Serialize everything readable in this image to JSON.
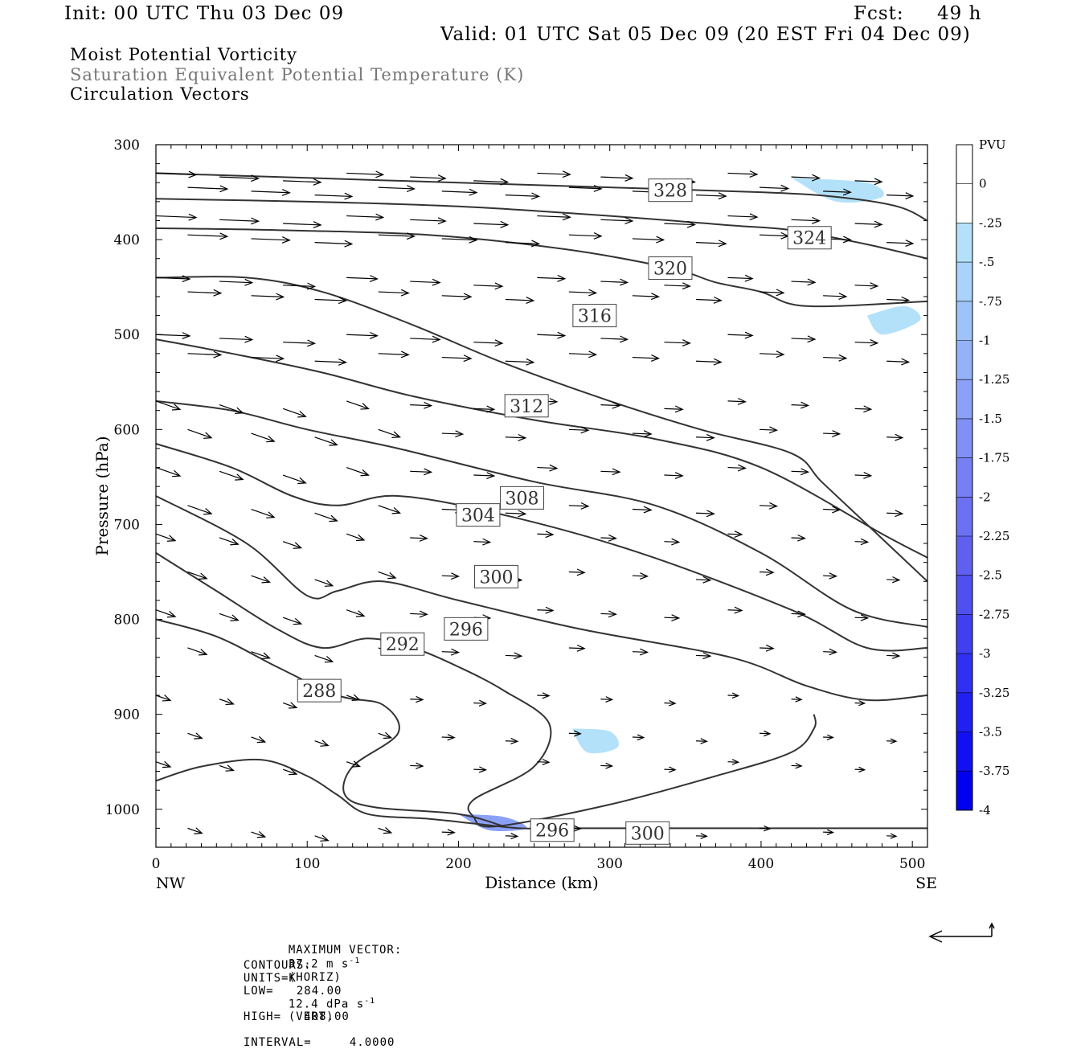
{
  "header": {
    "init": "Init: 00 UTC Thu 03 Dec 09",
    "fcst_label": "Fcst:",
    "fcst_value": "49 h",
    "valid": "Valid: 01 UTC Sat 05 Dec 09 (20 EST Fri 04 Dec 09)"
  },
  "fields": [
    {
      "label": "Moist Potential Vorticity",
      "color": "#000000"
    },
    {
      "label": "Saturation Equivalent Potential Temperature (K)",
      "color": "#777777"
    },
    {
      "label": "Circulation Vectors",
      "color": "#000000"
    }
  ],
  "footer": {
    "max_vector_label": "MAXIMUM VECTOR:",
    "horiz_value": "37.2 m s",
    "horiz_exp": "-1",
    "horiz_tag": "(HORIZ)",
    "vert_value": "12.4 dPa s",
    "vert_exp": "-1",
    "vert_tag": "(VERT)",
    "contours_label": "CONTOURS:",
    "units": "UNITS=K",
    "low": "LOW=   284.00",
    "high": "HIGH=   408.00",
    "interval": "INTERVAL=     4.0000"
  },
  "chart_data": {
    "type": "contour",
    "xlabel": "Distance (km)",
    "ylabel": "Pressure (hPa)",
    "xlim": [
      0,
      510
    ],
    "ylim": [
      1040,
      300
    ],
    "x_ticks": [
      0,
      100,
      200,
      300,
      400,
      500
    ],
    "y_ticks": [
      300,
      400,
      500,
      600,
      700,
      800,
      900,
      1000
    ],
    "x_end_labels": {
      "left": "NW",
      "right": "SE"
    },
    "colorbar": {
      "title": "PVU",
      "levels": [
        "0",
        "-.25",
        "-.5",
        "-.75",
        "-1",
        "-1.25",
        "-1.5",
        "-1.75",
        "-2",
        "-2.25",
        "-2.5",
        "-2.75",
        "-3",
        "-3.25",
        "-3.5",
        "-3.75",
        "-4"
      ],
      "colors": [
        "#ffffff",
        "#ffffff",
        "#b4e1fa",
        "#a9d3fa",
        "#9ec3f9",
        "#94b2f8",
        "#8aa1f7",
        "#8090f6",
        "#7680f4",
        "#6c70f2",
        "#6060f0",
        "#5050f0",
        "#4040f0",
        "#3030f0",
        "#2020f0",
        "#1010f0",
        "#0000f0"
      ]
    },
    "theta_es_contours": [
      {
        "label": "288",
        "points": [
          [
            0,
            970
          ],
          [
            30,
            955
          ],
          [
            70,
            948
          ],
          [
            100,
            965
          ],
          [
            120,
            985
          ],
          [
            140,
            1005
          ],
          [
            180,
            1010
          ],
          [
            210,
            1015
          ],
          [
            240,
            1020
          ],
          [
            260,
            1020
          ],
          [
            300,
            1020
          ],
          [
            400,
            1020
          ],
          [
            510,
            1020
          ]
        ]
      },
      {
        "label": "292",
        "points": [
          [
            0,
            800
          ],
          [
            40,
            818
          ],
          [
            80,
            850
          ],
          [
            120,
            880
          ],
          [
            150,
            890
          ],
          [
            160,
            920
          ],
          [
            130,
            955
          ],
          [
            125,
            985
          ],
          [
            145,
            998
          ],
          [
            200,
            1005
          ],
          [
            230,
            1018
          ]
        ]
      },
      {
        "label": "296",
        "points": [
          [
            0,
            730
          ],
          [
            40,
            770
          ],
          [
            80,
            810
          ],
          [
            110,
            830
          ],
          [
            140,
            820
          ],
          [
            170,
            830
          ],
          [
            200,
            850
          ],
          [
            230,
            875
          ],
          [
            260,
            910
          ],
          [
            250,
            955
          ],
          [
            210,
            990
          ],
          [
            210,
            1008
          ],
          [
            225,
            1018
          ],
          [
            300,
            995
          ],
          [
            370,
            965
          ],
          [
            420,
            940
          ],
          [
            435,
            915
          ],
          [
            435,
            900
          ]
        ]
      },
      {
        "label": "300",
        "points": [
          [
            0,
            670
          ],
          [
            60,
            720
          ],
          [
            100,
            775
          ],
          [
            120,
            770
          ],
          [
            150,
            760
          ],
          [
            200,
            780
          ],
          [
            280,
            810
          ],
          [
            380,
            840
          ],
          [
            430,
            870
          ],
          [
            470,
            885
          ],
          [
            510,
            880
          ]
        ]
      },
      {
        "label": "304",
        "points": [
          [
            0,
            615
          ],
          [
            50,
            640
          ],
          [
            90,
            670
          ],
          [
            120,
            680
          ],
          [
            160,
            670
          ],
          [
            230,
            690
          ],
          [
            320,
            730
          ],
          [
            420,
            790
          ],
          [
            470,
            830
          ],
          [
            510,
            830
          ]
        ]
      },
      {
        "label": "308",
        "points": [
          [
            0,
            570
          ],
          [
            50,
            580
          ],
          [
            100,
            600
          ],
          [
            160,
            620
          ],
          [
            250,
            655
          ],
          [
            330,
            680
          ],
          [
            400,
            730
          ],
          [
            460,
            790
          ],
          [
            510,
            808
          ]
        ]
      },
      {
        "label": "312",
        "points": [
          [
            0,
            505
          ],
          [
            50,
            520
          ],
          [
            110,
            540
          ],
          [
            170,
            565
          ],
          [
            250,
            590
          ],
          [
            330,
            610
          ],
          [
            400,
            640
          ],
          [
            480,
            710
          ],
          [
            510,
            735
          ]
        ]
      },
      {
        "label": "316",
        "points": [
          [
            0,
            440
          ],
          [
            60,
            440
          ],
          [
            110,
            455
          ],
          [
            170,
            490
          ],
          [
            230,
            530
          ],
          [
            300,
            570
          ],
          [
            360,
            600
          ],
          [
            420,
            625
          ],
          [
            440,
            655
          ],
          [
            470,
            700
          ],
          [
            510,
            760
          ]
        ]
      },
      {
        "label": "320",
        "points": [
          [
            0,
            388
          ],
          [
            80,
            390
          ],
          [
            180,
            395
          ],
          [
            270,
            410
          ],
          [
            340,
            430
          ],
          [
            370,
            445
          ],
          [
            400,
            455
          ],
          [
            430,
            470
          ],
          [
            510,
            465
          ]
        ]
      },
      {
        "label": "324",
        "points": [
          [
            0,
            357
          ],
          [
            100,
            360
          ],
          [
            200,
            365
          ],
          [
            300,
            375
          ],
          [
            380,
            385
          ],
          [
            420,
            390
          ],
          [
            470,
            405
          ],
          [
            510,
            420
          ]
        ]
      },
      {
        "label": "328",
        "points": [
          [
            0,
            330
          ],
          [
            100,
            335
          ],
          [
            200,
            340
          ],
          [
            300,
            345
          ],
          [
            400,
            350
          ],
          [
            450,
            355
          ],
          [
            490,
            365
          ],
          [
            510,
            380
          ]
        ]
      }
    ],
    "pv_regions": [
      {
        "level": "-.25",
        "points": [
          [
            220,
            320
          ],
          [
            270,
            315
          ],
          [
            300,
            325
          ],
          [
            280,
            340
          ],
          [
            230,
            338
          ]
        ]
      },
      {
        "level": "-.25",
        "points": [
          [
            320,
            360
          ],
          [
            360,
            335
          ],
          [
            400,
            330
          ],
          [
            450,
            330
          ],
          [
            480,
            345
          ],
          [
            470,
            365
          ],
          [
            420,
            375
          ],
          [
            370,
            390
          ],
          [
            330,
            410
          ],
          [
            300,
            400
          ]
        ]
      },
      {
        "level": "-.5",
        "points": [
          [
            420,
            335
          ],
          [
            470,
            340
          ],
          [
            480,
            355
          ],
          [
            450,
            360
          ]
        ]
      },
      {
        "level": "-.25",
        "points": [
          [
            420,
            470
          ],
          [
            450,
            450
          ],
          [
            490,
            445
          ],
          [
            510,
            450
          ],
          [
            510,
            490
          ],
          [
            480,
            515
          ],
          [
            450,
            540
          ],
          [
            430,
            510
          ]
        ]
      },
      {
        "level": "-.5",
        "points": [
          [
            470,
            480
          ],
          [
            495,
            470
          ],
          [
            505,
            485
          ],
          [
            480,
            500
          ]
        ]
      },
      {
        "level": "-.25",
        "points": [
          [
            190,
            920
          ],
          [
            220,
            900
          ],
          [
            260,
            905
          ],
          [
            300,
            895
          ],
          [
            320,
            925
          ],
          [
            310,
            960
          ],
          [
            280,
            950
          ],
          [
            230,
            935
          ],
          [
            200,
            940
          ]
        ]
      },
      {
        "level": "-.5",
        "points": [
          [
            275,
            915
          ],
          [
            300,
            918
          ],
          [
            305,
            935
          ],
          [
            285,
            940
          ]
        ]
      },
      {
        "level": "-.25",
        "points": [
          [
            350,
            850
          ],
          [
            380,
            840
          ],
          [
            400,
            870
          ],
          [
            390,
            905
          ],
          [
            355,
            905
          ]
        ]
      },
      {
        "level": "-.25",
        "points": [
          [
            470,
            890
          ],
          [
            510,
            880
          ],
          [
            510,
            920
          ],
          [
            490,
            920
          ]
        ]
      },
      {
        "level": "-.25",
        "points": [
          [
            160,
            995
          ],
          [
            200,
            985
          ],
          [
            240,
            1000
          ],
          [
            300,
            995
          ],
          [
            340,
            1010
          ],
          [
            320,
            1020
          ],
          [
            240,
            1022
          ],
          [
            180,
            1010
          ]
        ]
      },
      {
        "level": "-1.5",
        "points": [
          [
            200,
            1005
          ],
          [
            230,
            1008
          ],
          [
            245,
            1020
          ],
          [
            220,
            1022
          ]
        ]
      },
      {
        "level": "-.25",
        "points": [
          [
            0,
            960
          ],
          [
            40,
            955
          ],
          [
            40,
            965
          ],
          [
            0,
            968
          ]
        ]
      }
    ]
  }
}
